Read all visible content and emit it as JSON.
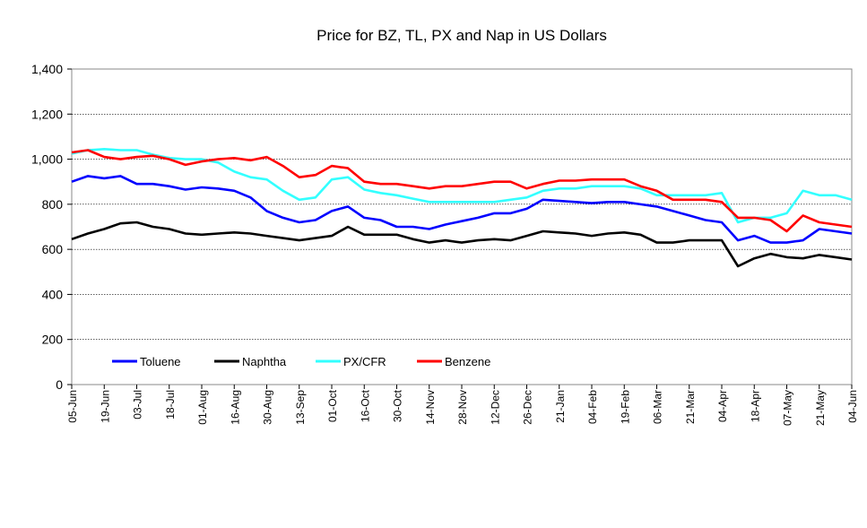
{
  "chart_data": {
    "type": "line",
    "title": "Price for BZ, TL, PX and Nap in US Dollars",
    "xlabel": "",
    "ylabel": "",
    "ylim": [
      0,
      1400
    ],
    "yticks": [
      "0",
      "200",
      "400",
      "600",
      "800",
      "1,000",
      "1,200",
      "1,400"
    ],
    "grid": true,
    "legend_position": "bottom-left inside plot",
    "x_tick_labels": [
      "05-Jun",
      "19-Jun",
      "03-Jul",
      "18-Jul",
      "01-Aug",
      "16-Aug",
      "30-Aug",
      "13-Sep",
      "01-Oct",
      "16-Oct",
      "30-Oct",
      "14-Nov",
      "28-Nov",
      "12-Dec",
      "26-Dec",
      "21-Jan",
      "04-Feb",
      "19-Feb",
      "06-Mar",
      "21-Mar",
      "04-Apr",
      "18-Apr",
      "07-May",
      "21-May",
      "04-Jun"
    ],
    "x": [
      "05-Jun",
      "12-Jun",
      "19-Jun",
      "26-Jun",
      "03-Jul",
      "10-Jul",
      "18-Jul",
      "25-Jul",
      "01-Aug",
      "08-Aug",
      "16-Aug",
      "23-Aug",
      "30-Aug",
      "06-Sep",
      "13-Sep",
      "22-Sep",
      "01-Oct",
      "08-Oct",
      "16-Oct",
      "23-Oct",
      "30-Oct",
      "07-Nov",
      "14-Nov",
      "21-Nov",
      "28-Nov",
      "05-Dec",
      "12-Dec",
      "19-Dec",
      "26-Dec",
      "09-Jan",
      "21-Jan",
      "28-Jan",
      "04-Feb",
      "11-Feb",
      "19-Feb",
      "26-Feb",
      "06-Mar",
      "13-Mar",
      "21-Mar",
      "28-Mar",
      "04-Apr",
      "11-Apr",
      "18-Apr",
      "25-Apr",
      "07-May",
      "14-May",
      "21-May",
      "28-May",
      "04-Jun"
    ],
    "series": [
      {
        "name": "Toluene",
        "color": "#0000ff",
        "values": [
          900,
          925,
          915,
          925,
          890,
          890,
          880,
          865,
          875,
          870,
          860,
          830,
          770,
          740,
          720,
          730,
          770,
          790,
          740,
          730,
          700,
          700,
          690,
          710,
          725,
          740,
          760,
          760,
          780,
          820,
          815,
          810,
          805,
          810,
          810,
          800,
          790,
          770,
          750,
          730,
          720,
          640,
          660,
          630,
          630,
          640,
          690,
          680,
          670
        ]
      },
      {
        "name": "Naphtha",
        "color": "#000000",
        "values": [
          645,
          670,
          690,
          715,
          720,
          700,
          690,
          670,
          665,
          670,
          675,
          670,
          660,
          650,
          640,
          650,
          660,
          700,
          665,
          665,
          665,
          645,
          630,
          640,
          630,
          640,
          645,
          640,
          660,
          680,
          675,
          670,
          660,
          670,
          675,
          665,
          630,
          630,
          640,
          640,
          640,
          525,
          560,
          580,
          565,
          560,
          575,
          565,
          555
        ]
      },
      {
        "name": "PX/CFR",
        "color": "#33ffff",
        "values": [
          1025,
          1040,
          1045,
          1040,
          1040,
          1020,
          1005,
          1000,
          1000,
          985,
          945,
          920,
          910,
          860,
          820,
          830,
          910,
          920,
          865,
          850,
          840,
          825,
          810,
          810,
          810,
          810,
          810,
          820,
          830,
          860,
          870,
          870,
          880,
          880,
          880,
          870,
          840,
          840,
          840,
          840,
          850,
          720,
          740,
          740,
          760,
          860,
          840,
          840,
          820
        ]
      },
      {
        "name": "Benzene",
        "color": "#ff0000",
        "values": [
          1030,
          1040,
          1010,
          1000,
          1010,
          1015,
          1000,
          975,
          990,
          1000,
          1005,
          995,
          1010,
          970,
          920,
          930,
          970,
          960,
          900,
          890,
          890,
          880,
          870,
          880,
          880,
          890,
          900,
          900,
          870,
          890,
          905,
          905,
          910,
          910,
          910,
          880,
          860,
          820,
          820,
          820,
          810,
          740,
          740,
          730,
          680,
          750,
          720,
          710,
          700
        ]
      }
    ]
  }
}
